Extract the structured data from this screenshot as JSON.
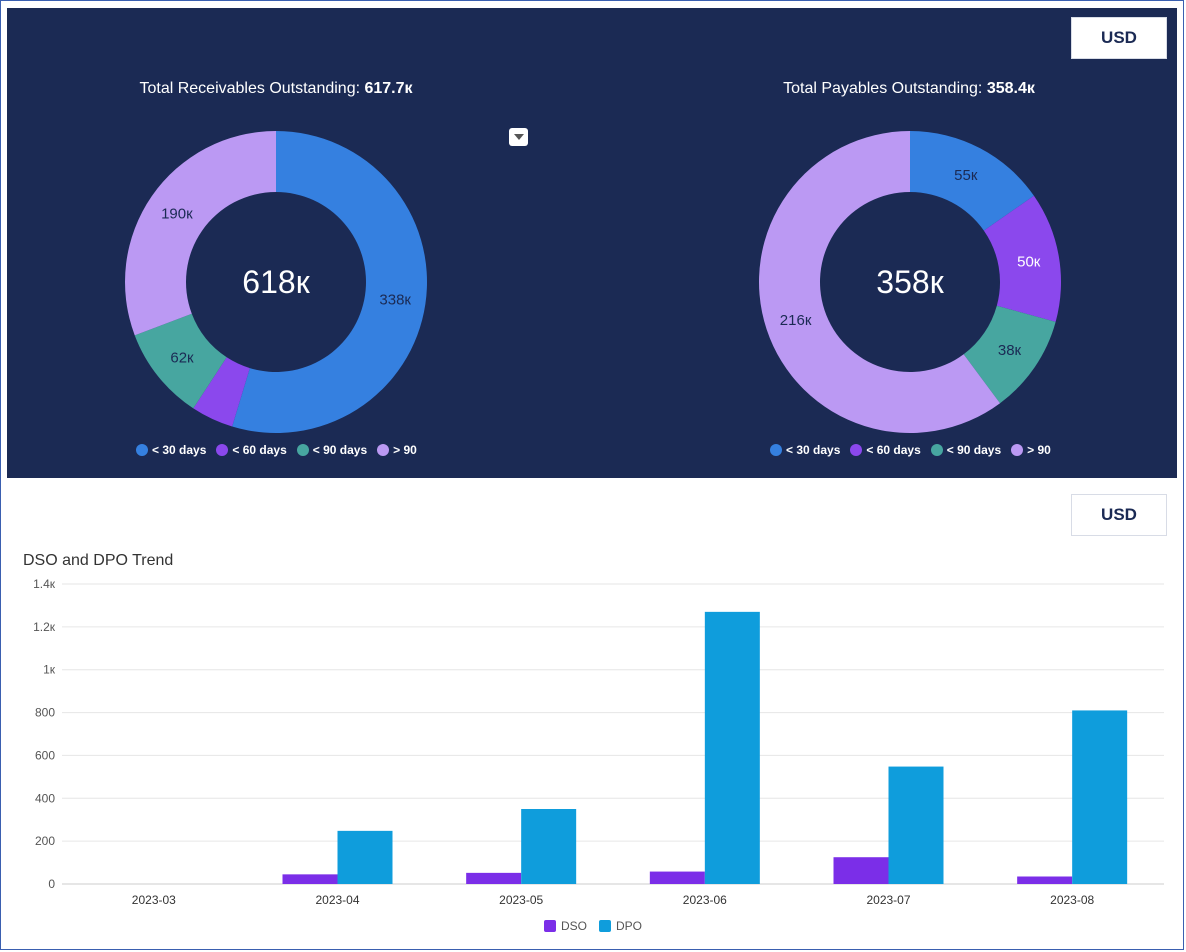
{
  "colors": {
    "panel_bg": "#1b2a54",
    "lt30": "#3580e0",
    "lt60": "#8b48ed",
    "lt90": "#47a6a0",
    "gt90": "#bb99f3",
    "dso": "#7b2ee8",
    "dpo": "#0f9ddc"
  },
  "top": {
    "currency_label": "USD",
    "receivables": {
      "title_prefix": "Total Receivables Outstanding: ",
      "title_value": "617.7к",
      "center_label": "618к"
    },
    "payables": {
      "title_prefix": "Total Payables Outstanding: ",
      "title_value": "358.4к",
      "center_label": "358к"
    },
    "legend": [
      "< 30 days",
      "< 60 days",
      "< 90 days",
      "> 90"
    ]
  },
  "bottom": {
    "currency_label": "USD"
  },
  "chart_data": [
    {
      "type": "pie",
      "title": "Total Receivables Outstanding: 617.7к",
      "categories": [
        "< 30 days",
        "< 60 days",
        "< 90 days",
        "> 90"
      ],
      "values": [
        338,
        28,
        62,
        190
      ],
      "labels": [
        "338к",
        "",
        "62к",
        "190к"
      ],
      "center": "618к",
      "legend_position": "bottom"
    },
    {
      "type": "pie",
      "title": "Total Payables Outstanding: 358.4к",
      "categories": [
        "< 30 days",
        "< 60 days",
        "< 90 days",
        "> 90"
      ],
      "values": [
        55,
        50,
        38,
        216
      ],
      "labels": [
        "55к",
        "50к",
        "38к",
        "216к"
      ],
      "center": "358к",
      "legend_position": "bottom"
    },
    {
      "type": "bar",
      "title": "DSO and DPO Trend",
      "categories": [
        "2023-03",
        "2023-04",
        "2023-05",
        "2023-06",
        "2023-07",
        "2023-08"
      ],
      "series": [
        {
          "name": "DSO",
          "values": [
            0,
            45,
            52,
            58,
            125,
            35
          ]
        },
        {
          "name": "DPO",
          "values": [
            0,
            248,
            350,
            1270,
            548,
            810
          ]
        }
      ],
      "ylim": [
        0,
        1400
      ],
      "yticks": [
        0,
        200,
        400,
        600,
        800,
        1000,
        1200,
        1400
      ],
      "ytick_labels": [
        "0",
        "200",
        "400",
        "600",
        "800",
        "1к",
        "1.2к",
        "1.4к"
      ],
      "grid": true,
      "legend_position": "bottom"
    }
  ]
}
